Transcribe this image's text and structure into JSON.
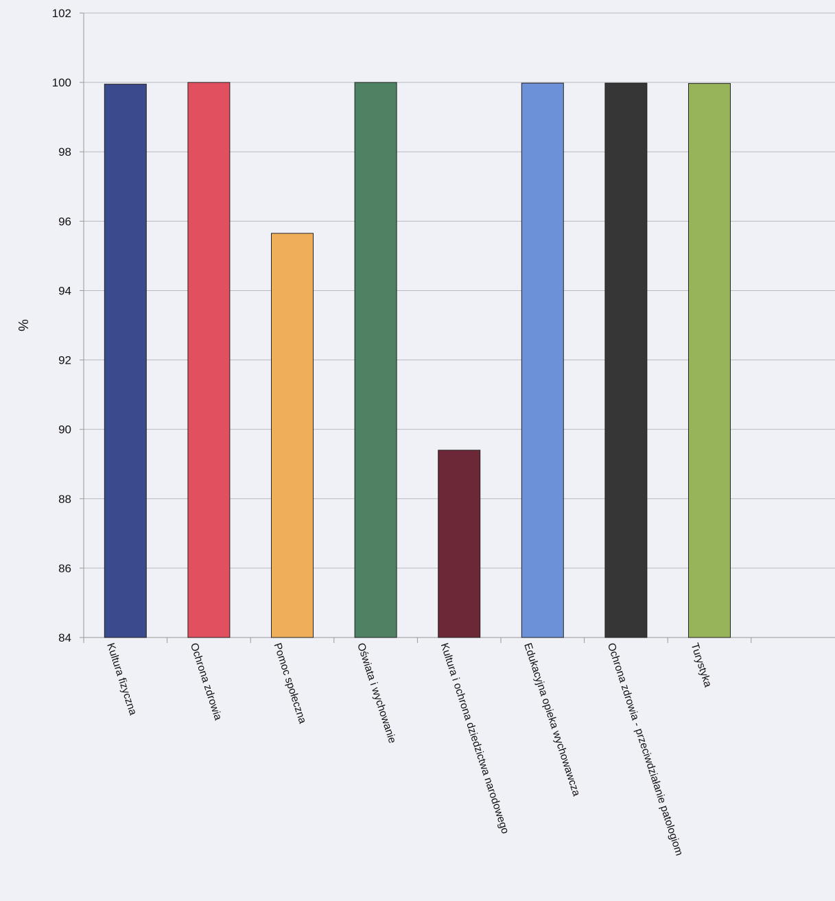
{
  "chart_data": {
    "type": "bar",
    "title": "",
    "xlabel": "",
    "ylabel": "%",
    "ylim": [
      84,
      102
    ],
    "yticks": [
      84,
      86,
      88,
      90,
      92,
      94,
      96,
      98,
      100,
      102
    ],
    "grid": true,
    "legend": "none",
    "categories": [
      "Kultura fizyczna",
      "Ochrona zdrowia",
      "Pomoc społeczna",
      "Oświata i wychowanie",
      "Kultura i ochrona dziedzictwa narodowego",
      "Edukacyjna opieka wychowawcza",
      "Ochrona zdrowia - przeciwdziałanie patologiom",
      "Turystyka"
    ],
    "values": [
      99.95,
      100.0,
      95.65,
      100.0,
      89.4,
      99.98,
      99.98,
      99.97
    ],
    "colors": [
      "#3b4a8c",
      "#e0505e",
      "#eeae5a",
      "#4e8262",
      "#6d2838",
      "#6c91d8",
      "#363636",
      "#97b45a"
    ]
  }
}
